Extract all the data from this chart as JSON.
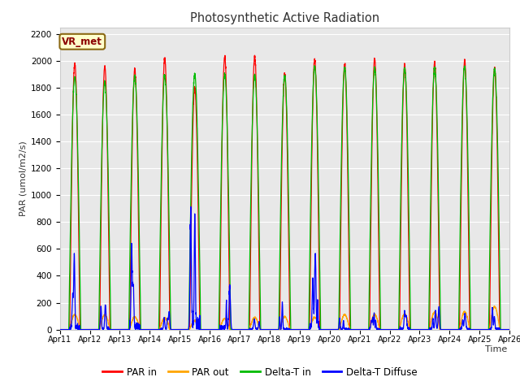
{
  "title": "Photosynthetic Active Radiation",
  "ylabel": "PAR (umol/m2/s)",
  "xlabel": "Time",
  "ylim": [
    0,
    2250
  ],
  "yticks": [
    0,
    200,
    400,
    600,
    800,
    1000,
    1200,
    1400,
    1600,
    1800,
    2000,
    2200
  ],
  "x_labels": [
    "Apr 11",
    "Apr 12",
    "Apr 13",
    "Apr 14",
    "Apr 15",
    "Apr 16",
    "Apr 17",
    "Apr 18",
    "Apr 19",
    "Apr 20",
    "Apr 21",
    "Apr 22",
    "Apr 23",
    "Apr 24",
    "Apr 25",
    "Apr 26"
  ],
  "station_label": "VR_met",
  "colors": {
    "PAR_in": "#ff0000",
    "PAR_out": "#ffa500",
    "Delta_T_in": "#00bb00",
    "Delta_T_Diffuse": "#0000ff"
  },
  "legend_labels": [
    "PAR in",
    "PAR out",
    "Delta-T in",
    "Delta-T Diffuse"
  ],
  "background_color": "#e8e8e8",
  "n_days": 15,
  "peaks": {
    "PAR_in": [
      1980,
      1960,
      1940,
      2020,
      1800,
      2030,
      2030,
      1900,
      2010,
      1970,
      2010,
      1970,
      1980,
      2000,
      1950
    ],
    "PAR_out": [
      110,
      110,
      95,
      85,
      65,
      80,
      90,
      95,
      90,
      110,
      110,
      115,
      130,
      130,
      170
    ],
    "Delta_T_in": [
      1880,
      1840,
      1890,
      1890,
      1900,
      1900,
      1890,
      1890,
      1960,
      1950,
      1950,
      1950,
      1950,
      1960,
      1940
    ],
    "Delta_T_Diffuse": [
      450,
      200,
      600,
      100,
      860,
      420,
      110,
      115,
      460,
      140,
      130,
      200,
      170,
      150,
      175
    ]
  }
}
